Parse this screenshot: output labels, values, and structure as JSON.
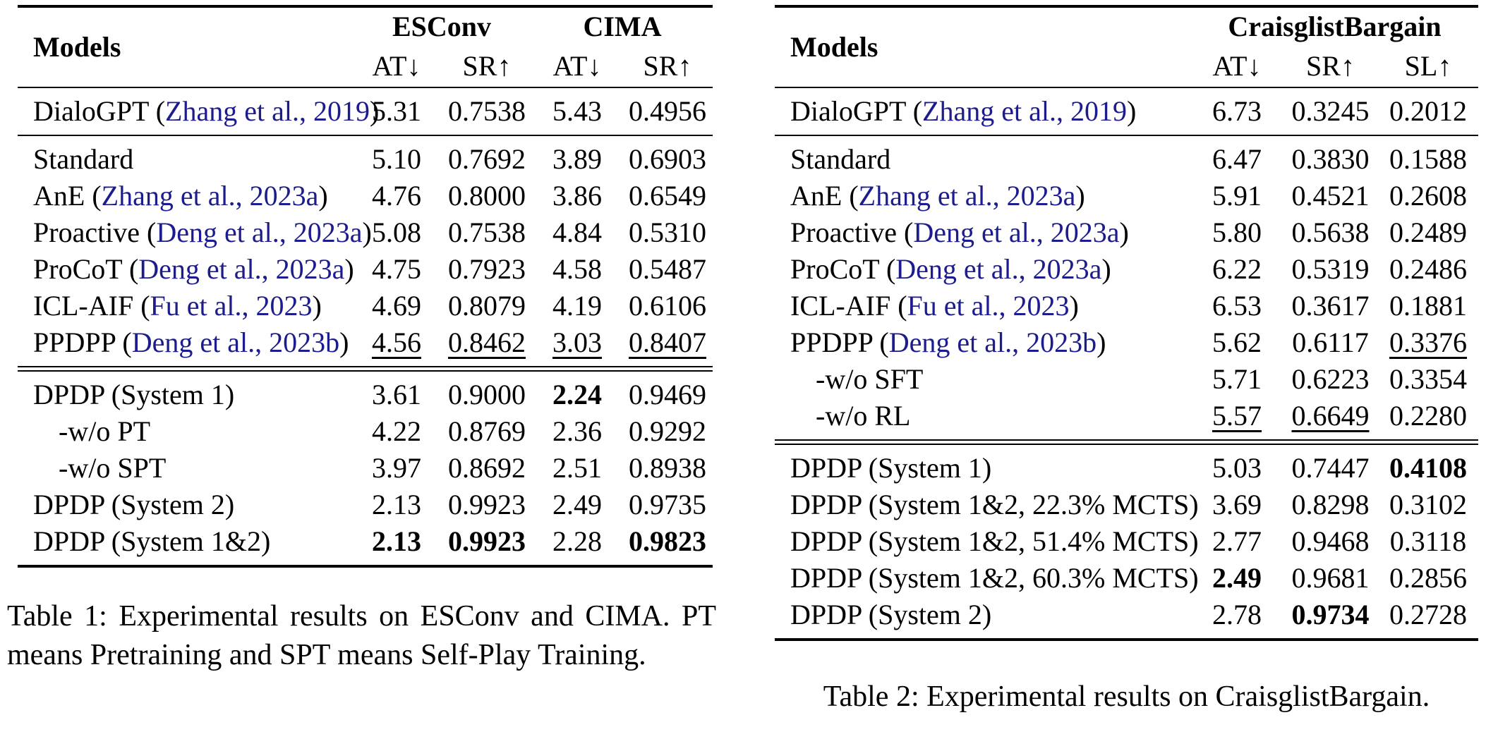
{
  "colors": {
    "citation_blue": "#1c1c8f",
    "text": "#000000",
    "background": "#ffffff"
  },
  "tables": [
    {
      "name": "Table 1",
      "header": {
        "models_label": "Models",
        "groups": [
          {
            "label": "ESConv",
            "span": 2
          },
          {
            "label": "CIMA",
            "span": 2
          }
        ],
        "metrics": [
          "AT↓",
          "SR↑",
          "AT↓",
          "SR↑"
        ]
      },
      "sections": [
        {
          "rows": [
            {
              "model": {
                "pre": "DialoGPT (",
                "cite": "Zhang et al., 2019",
                "post": ")"
              },
              "values": [
                {
                  "t": "5.31"
                },
                {
                  "t": "0.7538"
                },
                {
                  "t": "5.43"
                },
                {
                  "t": "0.4956"
                }
              ]
            }
          ],
          "rule_after": "single"
        },
        {
          "rows": [
            {
              "model": {
                "pre": "Standard"
              },
              "values": [
                {
                  "t": "5.10"
                },
                {
                  "t": "0.7692"
                },
                {
                  "t": "3.89"
                },
                {
                  "t": "0.6903"
                }
              ]
            },
            {
              "model": {
                "pre": "AnE (",
                "cite": "Zhang et al., 2023a",
                "post": ")"
              },
              "values": [
                {
                  "t": "4.76"
                },
                {
                  "t": "0.8000"
                },
                {
                  "t": "3.86"
                },
                {
                  "t": "0.6549"
                }
              ]
            },
            {
              "model": {
                "pre": "Proactive (",
                "cite": "Deng et al., 2023a",
                "post": ")"
              },
              "values": [
                {
                  "t": "5.08"
                },
                {
                  "t": "0.7538"
                },
                {
                  "t": "4.84"
                },
                {
                  "t": "0.5310"
                }
              ]
            },
            {
              "model": {
                "pre": "ProCoT (",
                "cite": "Deng et al., 2023a",
                "post": ")"
              },
              "values": [
                {
                  "t": "4.75"
                },
                {
                  "t": "0.7923"
                },
                {
                  "t": "4.58"
                },
                {
                  "t": "0.5487"
                }
              ]
            },
            {
              "model": {
                "pre": "ICL-AIF (",
                "cite": "Fu et al., 2023",
                "post": ")"
              },
              "values": [
                {
                  "t": "4.69"
                },
                {
                  "t": "0.8079"
                },
                {
                  "t": "4.19"
                },
                {
                  "t": "0.6106"
                }
              ]
            },
            {
              "model": {
                "pre": "PPDPP (",
                "cite": "Deng et al., 2023b",
                "post": ")"
              },
              "values": [
                {
                  "t": "4.56",
                  "u": true
                },
                {
                  "t": "0.8462",
                  "u": true
                },
                {
                  "t": "3.03",
                  "u": true
                },
                {
                  "t": "0.8407",
                  "u": true
                }
              ]
            }
          ],
          "rule_after": "double"
        },
        {
          "rows": [
            {
              "model": {
                "pre": "DPDP (System 1)"
              },
              "values": [
                {
                  "t": "3.61"
                },
                {
                  "t": "0.9000"
                },
                {
                  "t": "2.24",
                  "b": true
                },
                {
                  "t": "0.9469"
                }
              ]
            },
            {
              "model": {
                "pre": "-w/o PT"
              },
              "indent": true,
              "values": [
                {
                  "t": "4.22"
                },
                {
                  "t": "0.8769"
                },
                {
                  "t": "2.36"
                },
                {
                  "t": "0.9292"
                }
              ]
            },
            {
              "model": {
                "pre": "-w/o SPT"
              },
              "indent": true,
              "values": [
                {
                  "t": "3.97"
                },
                {
                  "t": "0.8692"
                },
                {
                  "t": "2.51"
                },
                {
                  "t": "0.8938"
                }
              ]
            },
            {
              "model": {
                "pre": "DPDP (System 2)"
              },
              "values": [
                {
                  "t": "2.13"
                },
                {
                  "t": "0.9923"
                },
                {
                  "t": "2.49"
                },
                {
                  "t": "0.9735"
                }
              ]
            },
            {
              "model": {
                "pre": "DPDP (System 1&2)"
              },
              "values": [
                {
                  "t": "2.13",
                  "b": true
                },
                {
                  "t": "0.9923",
                  "b": true
                },
                {
                  "t": "2.28"
                },
                {
                  "t": "0.9823",
                  "b": true
                }
              ]
            }
          ],
          "rule_after": "bottom"
        }
      ],
      "caption_align": "justify",
      "caption_lines": [
        "Table 1: Experimental results on ESConv and CIMA. PT",
        "means Pretraining and SPT means Self-Play Training."
      ]
    },
    {
      "name": "Table 2",
      "header": {
        "models_label": "Models",
        "groups": [
          {
            "label": "CraisglistBargain",
            "span": 3
          }
        ],
        "metrics": [
          "AT↓",
          "SR↑",
          "SL↑"
        ]
      },
      "sections": [
        {
          "rows": [
            {
              "model": {
                "pre": "DialoGPT (",
                "cite": "Zhang et al., 2019",
                "post": ")"
              },
              "values": [
                {
                  "t": "6.73"
                },
                {
                  "t": "0.3245"
                },
                {
                  "t": "0.2012"
                }
              ]
            }
          ],
          "rule_after": "single"
        },
        {
          "rows": [
            {
              "model": {
                "pre": "Standard"
              },
              "values": [
                {
                  "t": "6.47"
                },
                {
                  "t": "0.3830"
                },
                {
                  "t": "0.1588"
                }
              ]
            },
            {
              "model": {
                "pre": "AnE (",
                "cite": "Zhang et al., 2023a",
                "post": ")"
              },
              "values": [
                {
                  "t": "5.91"
                },
                {
                  "t": "0.4521"
                },
                {
                  "t": "0.2608"
                }
              ]
            },
            {
              "model": {
                "pre": "Proactive (",
                "cite": "Deng et al., 2023a",
                "post": ")"
              },
              "values": [
                {
                  "t": "5.80"
                },
                {
                  "t": "0.5638"
                },
                {
                  "t": "0.2489"
                }
              ]
            },
            {
              "model": {
                "pre": "ProCoT (",
                "cite": "Deng et al., 2023a",
                "post": ")"
              },
              "values": [
                {
                  "t": "6.22"
                },
                {
                  "t": "0.5319"
                },
                {
                  "t": "0.2486"
                }
              ]
            },
            {
              "model": {
                "pre": "ICL-AIF (",
                "cite": "Fu et al., 2023",
                "post": ")"
              },
              "values": [
                {
                  "t": "6.53"
                },
                {
                  "t": "0.3617"
                },
                {
                  "t": "0.1881"
                }
              ]
            },
            {
              "model": {
                "pre": "PPDPP (",
                "cite": "Deng et al., 2023b",
                "post": ")"
              },
              "values": [
                {
                  "t": "5.62"
                },
                {
                  "t": "0.6117"
                },
                {
                  "t": "0.3376",
                  "u": true
                }
              ]
            },
            {
              "model": {
                "pre": "-w/o SFT"
              },
              "indent": true,
              "values": [
                {
                  "t": "5.71"
                },
                {
                  "t": "0.6223"
                },
                {
                  "t": "0.3354"
                }
              ]
            },
            {
              "model": {
                "pre": "-w/o RL"
              },
              "indent": true,
              "values": [
                {
                  "t": "5.57",
                  "u": true
                },
                {
                  "t": "0.6649",
                  "u": true
                },
                {
                  "t": "0.2280"
                }
              ]
            }
          ],
          "rule_after": "double"
        },
        {
          "rows": [
            {
              "model": {
                "pre": "DPDP (System 1)"
              },
              "values": [
                {
                  "t": "5.03"
                },
                {
                  "t": "0.7447"
                },
                {
                  "t": "0.4108",
                  "b": true
                }
              ]
            },
            {
              "model": {
                "pre": "DPDP (System 1&2, 22.3% MCTS)"
              },
              "values": [
                {
                  "t": "3.69"
                },
                {
                  "t": "0.8298"
                },
                {
                  "t": "0.3102"
                }
              ]
            },
            {
              "model": {
                "pre": "DPDP (System 1&2, 51.4% MCTS)"
              },
              "values": [
                {
                  "t": "2.77"
                },
                {
                  "t": "0.9468"
                },
                {
                  "t": "0.3118"
                }
              ]
            },
            {
              "model": {
                "pre": "DPDP (System 1&2, 60.3% MCTS)"
              },
              "values": [
                {
                  "t": "2.49",
                  "b": true
                },
                {
                  "t": "0.9681"
                },
                {
                  "t": "0.2856"
                }
              ]
            },
            {
              "model": {
                "pre": "DPDP (System 2)"
              },
              "values": [
                {
                  "t": "2.78"
                },
                {
                  "t": "0.9734",
                  "b": true
                },
                {
                  "t": "0.2728"
                }
              ]
            }
          ],
          "rule_after": "bottom"
        }
      ],
      "caption_align": "center",
      "caption_lines": [
        "Table 2: Experimental results on CraisglistBargain."
      ]
    }
  ]
}
